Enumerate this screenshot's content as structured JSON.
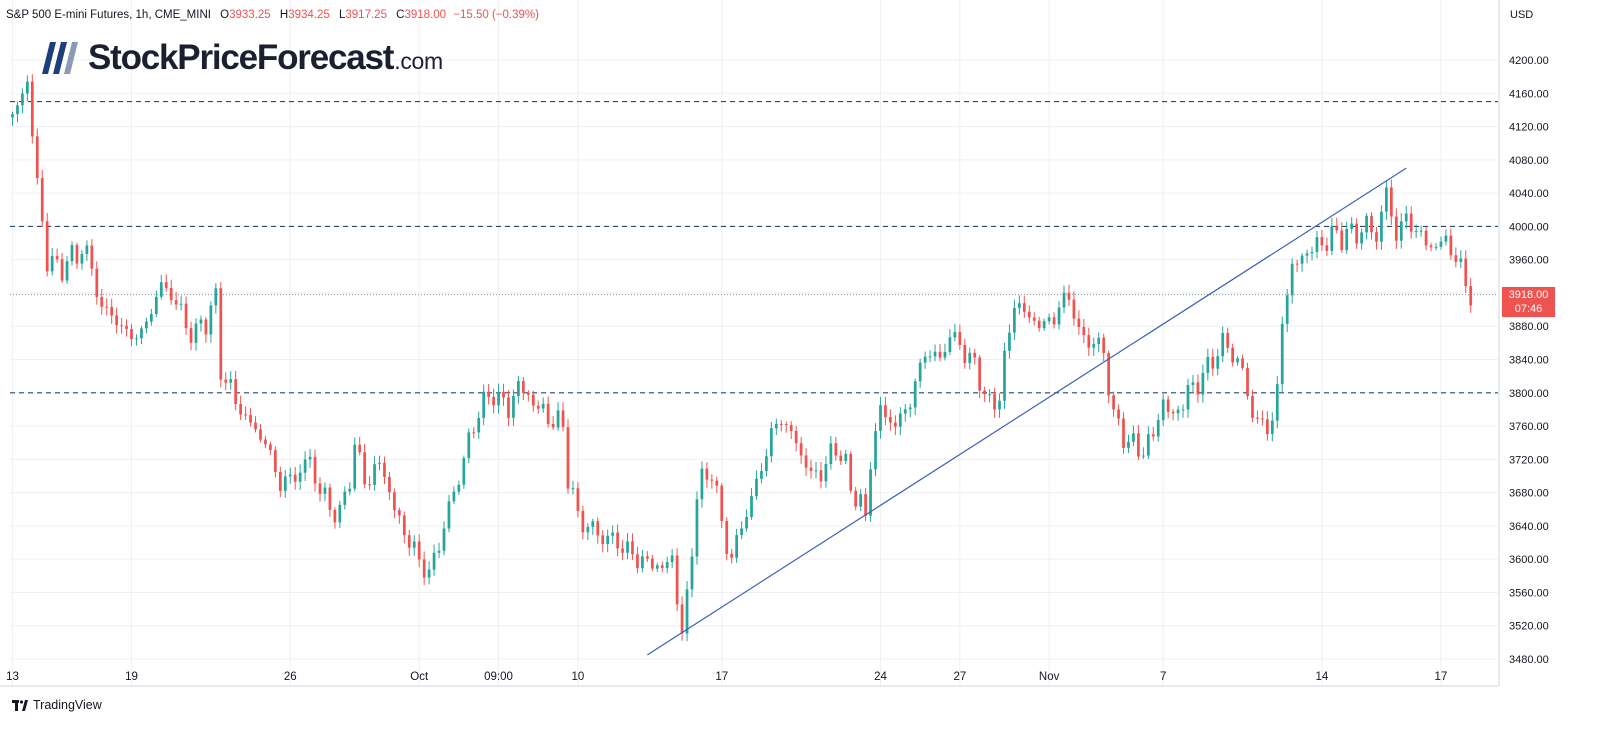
{
  "header": {
    "title": "S&P 500 E-mini Futures, 1h, CME_MINI",
    "open_label": "O",
    "open_value": "3933.25",
    "high_label": "H",
    "high_value": "3934.25",
    "low_label": "L",
    "low_value": "3917.25",
    "close_label": "C",
    "close_value": "3918.00",
    "change": "−15.50 (−0.39%)"
  },
  "logo": {
    "text": "StockPriceForecast",
    "domain": ".com"
  },
  "axis": {
    "currency": "USD"
  },
  "price_tag": {
    "price": "3918.00",
    "countdown": "07:46"
  },
  "footer": {
    "brand": "TradingView"
  },
  "colors": {
    "up": "#26a69a",
    "down": "#ef5350",
    "trendline": "#3b5fb5",
    "level_line": "#2b4a6a",
    "grid": "#eef0f3",
    "tag": "#ef5350"
  },
  "chart_data": {
    "type": "candlestick",
    "title": "S&P 500 E-mini Futures, 1h, CME_MINI",
    "ylim": [
      3480,
      4240
    ],
    "y_ticks": [
      3480,
      3520,
      3560,
      3600,
      3640,
      3680,
      3720,
      3760,
      3800,
      3840,
      3880,
      3920,
      3960,
      4000,
      4040,
      4080,
      4120,
      4160,
      4200
    ],
    "y_tick_labels": [
      "3480.00",
      "3520.00",
      "3560.00",
      "3600.00",
      "3640.00",
      "3680.00",
      "3720.00",
      "3760.00",
      "3800.00",
      "3840.00",
      "3880.00",
      "3920.00",
      "3960.00",
      "4000.00",
      "4040.00",
      "4080.00",
      "4120.00",
      "4160.00",
      "4200.00"
    ],
    "x_ticks": [
      "13",
      "19",
      "26",
      "Oct",
      "09:00",
      "10",
      "17",
      "24",
      "27",
      "Nov",
      "7",
      "14",
      "17"
    ],
    "x_tick_index": [
      0,
      24,
      56,
      82,
      98,
      114,
      143,
      175,
      191,
      209,
      232,
      264,
      288
    ],
    "n_bars": 300,
    "horizontal_levels": [
      4150,
      4000,
      3800
    ],
    "last_price": 3918,
    "trendline": {
      "start": {
        "bar": 128,
        "price": 3485
      },
      "end": {
        "bar": 281,
        "price": 4070
      }
    },
    "price_path": [
      [
        0,
        4130
      ],
      [
        2,
        4160
      ],
      [
        3,
        4175
      ],
      [
        5,
        4050
      ],
      [
        7,
        3960
      ],
      [
        9,
        3950
      ],
      [
        12,
        3960
      ],
      [
        14,
        3975
      ],
      [
        16,
        3950
      ],
      [
        18,
        3900
      ],
      [
        20,
        3895
      ],
      [
        23,
        3870
      ],
      [
        26,
        3870
      ],
      [
        28,
        3900
      ],
      [
        30,
        3930
      ],
      [
        33,
        3910
      ],
      [
        35,
        3880
      ],
      [
        37,
        3870
      ],
      [
        40,
        3900
      ],
      [
        41,
        3910
      ],
      [
        42,
        3830
      ],
      [
        45,
        3790
      ],
      [
        47,
        3770
      ],
      [
        51,
        3740
      ],
      [
        54,
        3690
      ],
      [
        57,
        3700
      ],
      [
        60,
        3720
      ],
      [
        62,
        3680
      ],
      [
        66,
        3650
      ],
      [
        69,
        3730
      ],
      [
        72,
        3690
      ],
      [
        74,
        3720
      ],
      [
        77,
        3660
      ],
      [
        80,
        3620
      ],
      [
        82,
        3600
      ],
      [
        84,
        3580
      ],
      [
        88,
        3660
      ],
      [
        91,
        3720
      ],
      [
        94,
        3780
      ],
      [
        97,
        3800
      ],
      [
        100,
        3780
      ],
      [
        102,
        3810
      ],
      [
        104,
        3795
      ],
      [
        108,
        3770
      ],
      [
        111,
        3760
      ],
      [
        112,
        3700
      ],
      [
        114,
        3650
      ],
      [
        118,
        3630
      ],
      [
        122,
        3620
      ],
      [
        126,
        3600
      ],
      [
        131,
        3590
      ],
      [
        133,
        3600
      ],
      [
        135,
        3510
      ],
      [
        136,
        3550
      ],
      [
        138,
        3680
      ],
      [
        141,
        3710
      ],
      [
        143,
        3640
      ],
      [
        145,
        3600
      ],
      [
        147,
        3640
      ],
      [
        150,
        3690
      ],
      [
        153,
        3750
      ],
      [
        155,
        3770
      ],
      [
        158,
        3740
      ],
      [
        161,
        3700
      ],
      [
        164,
        3710
      ],
      [
        166,
        3740
      ],
      [
        169,
        3690
      ],
      [
        172,
        3650
      ],
      [
        173,
        3720
      ],
      [
        175,
        3780
      ],
      [
        178,
        3760
      ],
      [
        181,
        3790
      ],
      [
        184,
        3850
      ],
      [
        187,
        3840
      ],
      [
        189,
        3870
      ],
      [
        192,
        3850
      ],
      [
        195,
        3820
      ],
      [
        197,
        3780
      ],
      [
        199,
        3800
      ],
      [
        202,
        3910
      ],
      [
        205,
        3890
      ],
      [
        208,
        3880
      ],
      [
        211,
        3900
      ],
      [
        213,
        3920
      ],
      [
        215,
        3870
      ],
      [
        218,
        3860
      ],
      [
        220,
        3850
      ],
      [
        222,
        3770
      ],
      [
        225,
        3740
      ],
      [
        228,
        3730
      ],
      [
        230,
        3750
      ],
      [
        232,
        3790
      ],
      [
        234,
        3770
      ],
      [
        237,
        3800
      ],
      [
        240,
        3820
      ],
      [
        242,
        3840
      ],
      [
        244,
        3860
      ],
      [
        247,
        3840
      ],
      [
        249,
        3800
      ],
      [
        251,
        3760
      ],
      [
        254,
        3765
      ],
      [
        255,
        3800
      ],
      [
        256,
        3890
      ],
      [
        258,
        3950
      ],
      [
        261,
        3970
      ],
      [
        264,
        3980
      ],
      [
        267,
        3990
      ],
      [
        270,
        3990
      ],
      [
        273,
        4000
      ],
      [
        275,
        3990
      ],
      [
        277,
        4040
      ],
      [
        279,
        3990
      ],
      [
        281,
        4010
      ],
      [
        283,
        3995
      ],
      [
        285,
        3980
      ],
      [
        287,
        3975
      ],
      [
        289,
        3985
      ],
      [
        291,
        3960
      ],
      [
        293,
        3935
      ],
      [
        294,
        3918
      ]
    ]
  }
}
